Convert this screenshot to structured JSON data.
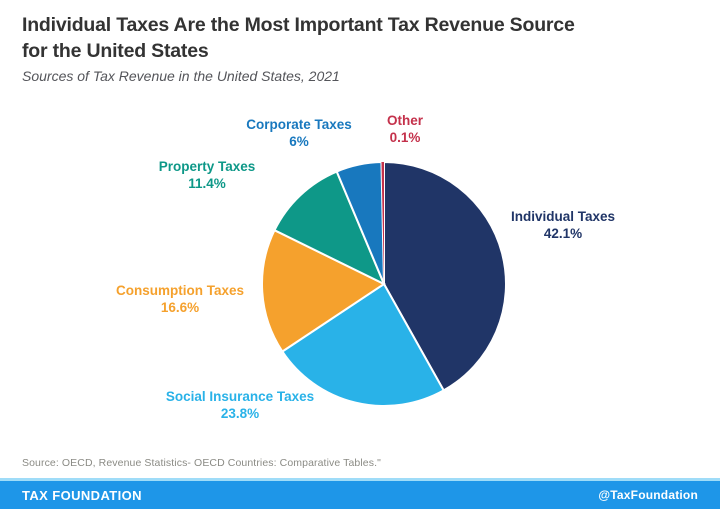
{
  "header": {
    "title_line1": "Individual Taxes Are the Most Important Tax Revenue Source",
    "title_line2": "for the United States",
    "subtitle": "Sources of Tax Revenue in the United States, 2021"
  },
  "chart_data": {
    "type": "pie",
    "title": "Individual Taxes Are the Most Important Tax Revenue Source for the United States",
    "subtitle": "Sources of Tax Revenue in the United States, 2021",
    "start_angle_deg": -90,
    "direction": "clockwise",
    "legend_position": "labels-around-pie",
    "slice_border_color": "#ffffff",
    "slices": [
      {
        "label": "Individual Taxes",
        "value": 42.1,
        "display": "42.1%",
        "color": "#203567"
      },
      {
        "label": "Social Insurance Taxes",
        "value": 23.8,
        "display": "23.8%",
        "color": "#29b2e8"
      },
      {
        "label": "Consumption Taxes",
        "value": 16.6,
        "display": "16.6%",
        "color": "#f5a12d"
      },
      {
        "label": "Property Taxes",
        "value": 11.4,
        "display": "11.4%",
        "color": "#0e9888"
      },
      {
        "label": "Corporate Taxes",
        "value": 6,
        "display": "6%",
        "color": "#1878be"
      },
      {
        "label": "Other",
        "value": 0.1,
        "display": "0.1%",
        "color": "#c4314b"
      }
    ]
  },
  "source_note": "Source: OECD, Revenue Statistics- OECD Countries: Comparative Tables.\"",
  "footer": {
    "brand": "TAX FOUNDATION",
    "handle": "@TaxFoundation",
    "bar_color": "#1e96e8",
    "strip_color": "#9fdcf8"
  }
}
